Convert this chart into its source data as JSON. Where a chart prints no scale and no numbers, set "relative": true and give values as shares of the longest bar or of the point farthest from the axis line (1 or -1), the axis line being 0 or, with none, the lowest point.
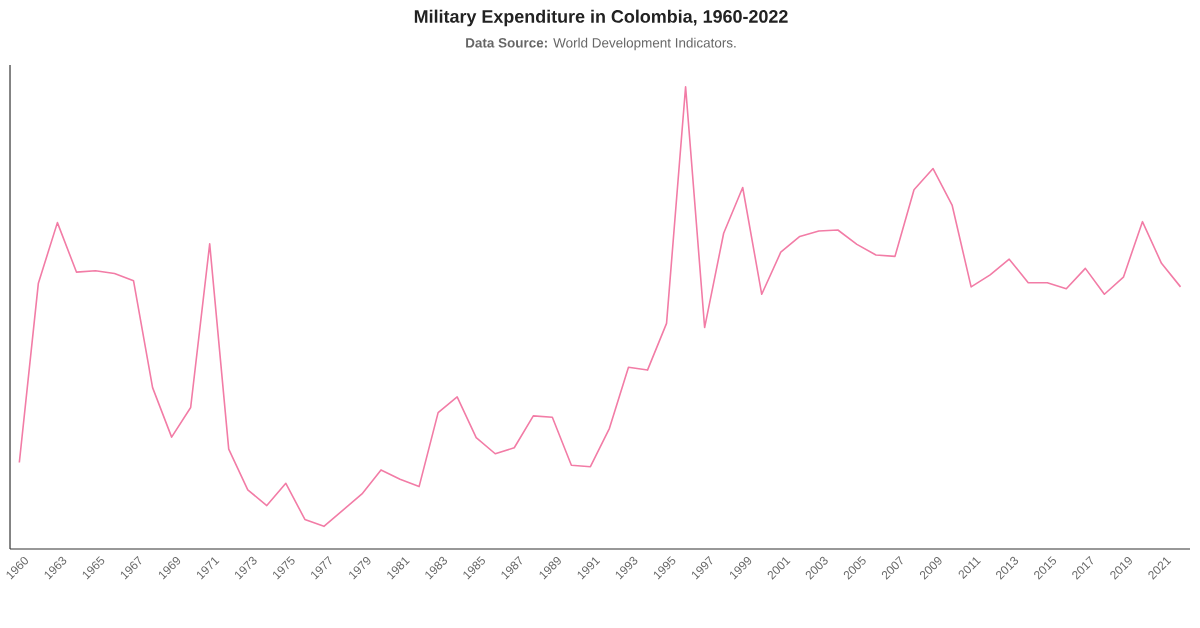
{
  "chart_data": {
    "type": "line",
    "title": "Military Expenditure in Colombia, 1960-2022",
    "subtitle": "**Data Source:** World Development Indicators.",
    "categories": [
      "1960",
      null,
      "1963",
      null,
      "1965",
      null,
      "1967",
      null,
      "1969",
      null,
      "1971",
      null,
      "1973",
      null,
      "1975",
      null,
      "1977",
      null,
      "1979",
      null,
      "1981",
      null,
      "1983",
      null,
      "1985",
      null,
      "1987",
      null,
      "1989",
      null,
      "1991",
      null,
      "1993",
      null,
      "1995",
      null,
      "1997",
      null,
      "1999",
      null,
      "2001",
      null,
      "2003",
      null,
      "2005",
      null,
      "2007",
      null,
      "2009",
      null,
      "2011",
      null,
      "2013",
      null,
      "2015",
      null,
      "2017",
      null,
      "2019",
      null,
      "2021",
      null
    ],
    "values": [
      0.187,
      0.575,
      0.706,
      0.599,
      0.602,
      0.596,
      0.58,
      0.349,
      0.242,
      0.306,
      0.66,
      0.216,
      0.128,
      0.094,
      0.142,
      0.064,
      0.049,
      0.084,
      0.119,
      0.171,
      0.151,
      0.135,
      0.295,
      0.329,
      0.241,
      0.206,
      0.219,
      0.288,
      0.285,
      0.181,
      0.178,
      0.261,
      0.393,
      0.387,
      0.488,
      1,
      0.479,
      0.683,
      0.782,
      0.551,
      0.642,
      0.676,
      0.688,
      0.69,
      0.659,
      0.636,
      0.633,
      0.777,
      0.823,
      0.744,
      0.567,
      0.593,
      0.627,
      0.576,
      0.576,
      0.563,
      0.607,
      0.551,
      0.588,
      0.708,
      0.618,
      0.567
    ],
    "color": "#f27ca6",
    "relative": true
  }
}
